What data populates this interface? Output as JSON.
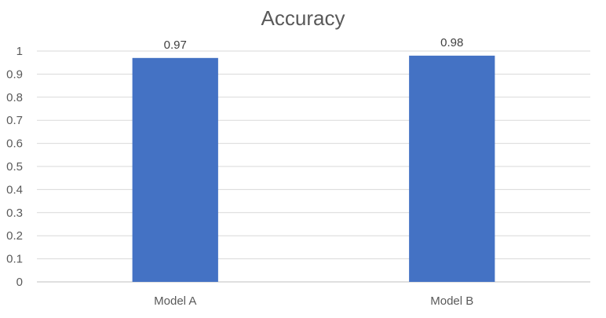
{
  "chart_data": {
    "type": "bar",
    "title": "Accuracy",
    "categories": [
      "Model A",
      "Model B"
    ],
    "series": [
      {
        "values": [
          0.97,
          0.98
        ],
        "color": "#4472c4"
      }
    ],
    "data_labels": [
      "0.97",
      "0.98"
    ],
    "ylim": [
      0,
      1
    ],
    "yticks": [
      "0",
      "0.1",
      "0.2",
      "0.3",
      "0.4",
      "0.5",
      "0.6",
      "0.7",
      "0.8",
      "0.9",
      "1"
    ],
    "grid": true,
    "legend": "none"
  }
}
